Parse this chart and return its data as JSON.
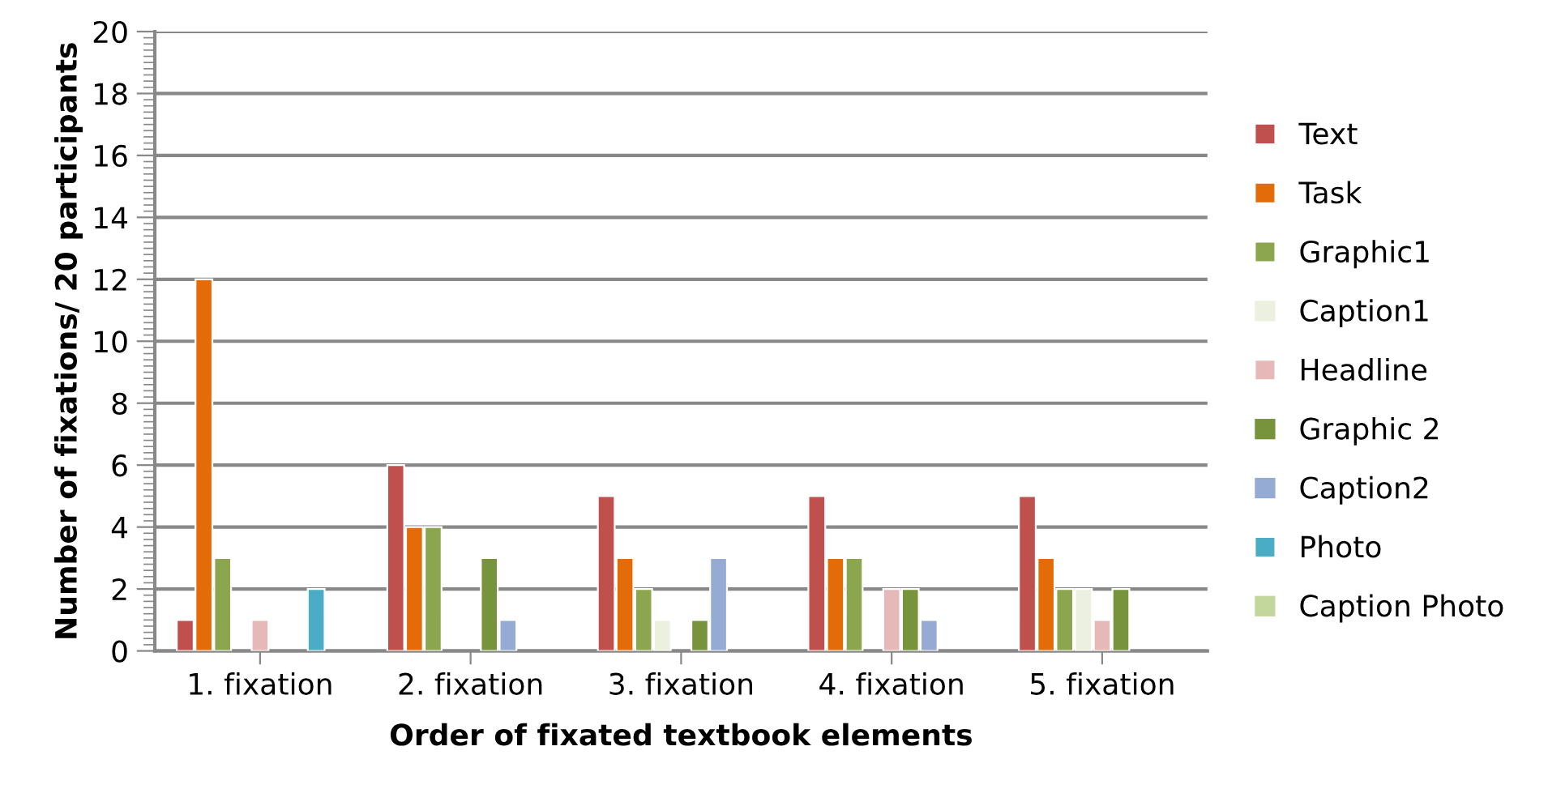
{
  "chart_data": {
    "type": "bar",
    "xlabel": "Order of fixated textbook elements",
    "ylabel": "Number of fixations/ 20 participants",
    "categories": [
      "1. fixation",
      "2. fixation",
      "3. fixation",
      "4. fixation",
      "5. fixation"
    ],
    "series": [
      {
        "name": "Text",
        "color": "#c0504d",
        "values": [
          1,
          6,
          5,
          5,
          5
        ]
      },
      {
        "name": "Task",
        "color": "#e36c09",
        "values": [
          12,
          4,
          3,
          3,
          3
        ]
      },
      {
        "name": "Graphic1",
        "color": "#8ba64e",
        "values": [
          3,
          4,
          2,
          3,
          2
        ]
      },
      {
        "name": "Caption1",
        "color": "#ebf1de",
        "values": [
          0,
          0,
          1,
          0,
          2
        ]
      },
      {
        "name": "Headline",
        "color": "#e6b9b8",
        "values": [
          1,
          0,
          0,
          2,
          1
        ]
      },
      {
        "name": "Graphic 2",
        "color": "#77933c",
        "values": [
          0,
          3,
          1,
          2,
          2
        ]
      },
      {
        "name": "Caption2",
        "color": "#95abd3",
        "values": [
          0,
          1,
          3,
          1,
          0
        ]
      },
      {
        "name": "Photo",
        "color": "#4bacc6",
        "values": [
          2,
          0,
          0,
          0,
          0
        ]
      },
      {
        "name": "Caption Photo",
        "color": "#c3d69b",
        "values": [
          0,
          0,
          0,
          0,
          0
        ]
      }
    ],
    "ylim": [
      0,
      20
    ],
    "yticks": [
      0,
      2,
      4,
      6,
      8,
      10,
      12,
      14,
      16,
      18,
      20
    ],
    "grid": "y",
    "legend": "right"
  }
}
